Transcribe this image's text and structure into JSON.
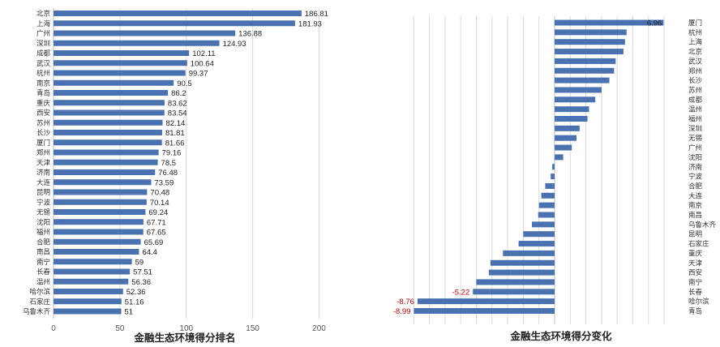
{
  "colors": {
    "bar": "#4a72b0",
    "bar_dark": "#2f5597",
    "grid": "#d9d9d9",
    "negative_label": "#c00000"
  },
  "chart_data": [
    {
      "type": "bar",
      "orientation": "horizontal",
      "title": "金融生态环境得分排名",
      "xlabel": "",
      "ylabel": "",
      "xlim": [
        0,
        200
      ],
      "xticks": [
        0,
        50,
        100,
        150,
        200
      ],
      "grid": true,
      "categories": [
        "北京",
        "上海",
        "广州",
        "深圳",
        "成都",
        "武汉",
        "杭州",
        "南京",
        "青岛",
        "重庆",
        "西安",
        "苏州",
        "长沙",
        "厦门",
        "郑州",
        "天津",
        "济南",
        "大连",
        "昆明",
        "宁波",
        "无锡",
        "沈阳",
        "福州",
        "合肥",
        "南昌",
        "南宁",
        "长春",
        "温州",
        "哈尔滨",
        "石家庄",
        "乌鲁木齐"
      ],
      "values": [
        186.81,
        181.93,
        136.88,
        124.93,
        102.11,
        100.64,
        99.37,
        90.5,
        86.2,
        83.62,
        83.54,
        82.14,
        81.81,
        81.66,
        79.16,
        78.5,
        76.48,
        73.59,
        70.48,
        70.14,
        69.24,
        67.71,
        67.65,
        65.69,
        64.4,
        59,
        57.51,
        56.36,
        52.36,
        51.16,
        51
      ],
      "value_labels": [
        "186.81",
        "181.93",
        "136.88",
        "124.93",
        "102.11",
        "100.64",
        "99.37",
        "90.5",
        "86.2",
        "83.62",
        "83.54",
        "82.14",
        "81.81",
        "81.66",
        "79.16",
        "78.5",
        "76.48",
        "73.59",
        "70.48",
        "70.14",
        "69.24",
        "67.71",
        "67.65",
        "65.69",
        "64.4",
        "59",
        "57.51",
        "56.36",
        "52.36",
        "51.16",
        "51"
      ]
    },
    {
      "type": "bar",
      "orientation": "horizontal",
      "title": "金融生态环境得分变化",
      "xlabel": "",
      "ylabel": "",
      "xlim": [
        -9.5,
        7.5
      ],
      "grid": true,
      "category_axis_position": "right",
      "categories": [
        "厦门",
        "杭州",
        "上海",
        "北京",
        "武汉",
        "郑州",
        "长沙",
        "苏州",
        "成都",
        "温州",
        "福州",
        "深圳",
        "无锡",
        "广州",
        "沈阳",
        "济南",
        "宁波",
        "合肥",
        "大连",
        "南京",
        "南昌",
        "乌鲁木齐",
        "昆明",
        "石家庄",
        "重庆",
        "天津",
        "西安",
        "南宁",
        "长春",
        "哈尔滨",
        "青岛"
      ],
      "values": [
        6.96,
        4.6,
        4.5,
        4.4,
        3.9,
        3.8,
        3.5,
        3.0,
        2.6,
        2.2,
        2.1,
        1.6,
        1.4,
        1.1,
        0.55,
        -0.15,
        -0.25,
        -0.6,
        -0.85,
        -1.0,
        -1.05,
        -1.45,
        -2.0,
        -2.3,
        -3.3,
        -4.1,
        -4.2,
        -5.0,
        -5.22,
        -8.76,
        -8.99
      ],
      "value_labels": [
        "6.96",
        "",
        "",
        "",
        "",
        "",
        "",
        "",
        "",
        "",
        "",
        "",
        "",
        "",
        "",
        "",
        "",
        "",
        "",
        "",
        "",
        "",
        "",
        "",
        "",
        "",
        "",
        "",
        "-5.22",
        "-8.76",
        "-8.99"
      ]
    }
  ]
}
